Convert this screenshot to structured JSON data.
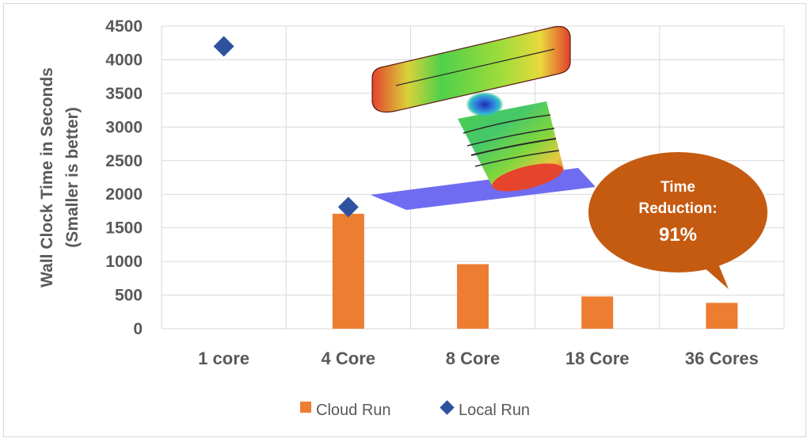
{
  "chart_data": {
    "type": "bar",
    "categories": [
      "1 core",
      "4 Core",
      "8 Core",
      "18 Core",
      "36 Cores"
    ],
    "series": [
      {
        "name": "Cloud Run",
        "kind": "bar",
        "color": "#ed7d31",
        "values": [
          null,
          1710,
          960,
          480,
          385
        ]
      },
      {
        "name": "Local Run",
        "kind": "marker-diamond",
        "color": "#2f52a0",
        "values": [
          4200,
          1810,
          null,
          null,
          null
        ]
      }
    ],
    "ylabel": [
      "Wall Clock Time in Seconds",
      "(Smaller is better)"
    ],
    "ylim": [
      0,
      4500
    ],
    "yticks": [
      "0",
      "500",
      "1000",
      "1500",
      "2000",
      "2500",
      "3000",
      "3500",
      "4000",
      "4500"
    ],
    "grid": true,
    "legend": "bottom",
    "annotation": {
      "lines": [
        "Time",
        "Reduction:",
        "91%"
      ],
      "color": "#c55a11"
    },
    "inset_image": "fea-stress-contour-3d-part"
  }
}
